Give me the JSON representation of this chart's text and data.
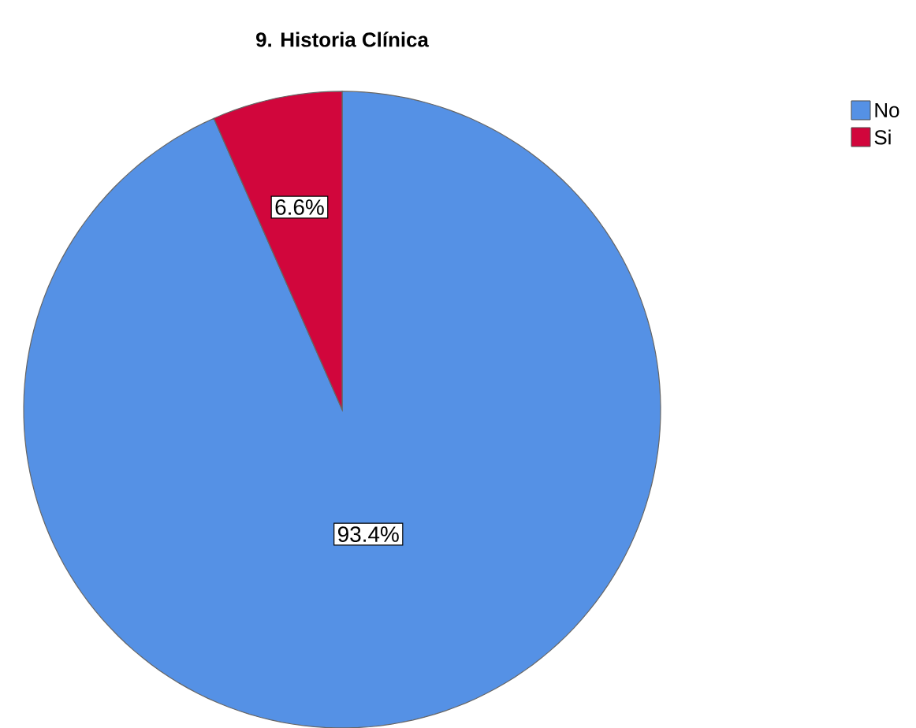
{
  "chart_data": {
    "type": "pie",
    "title": "9. Historia Clínica",
    "categories": [
      "No",
      "Si"
    ],
    "values": [
      93.4,
      6.6
    ],
    "colors": [
      "#5591e5",
      "#d1063c"
    ],
    "value_labels": [
      "93.4%",
      "6.6%"
    ],
    "legend": "top right"
  }
}
